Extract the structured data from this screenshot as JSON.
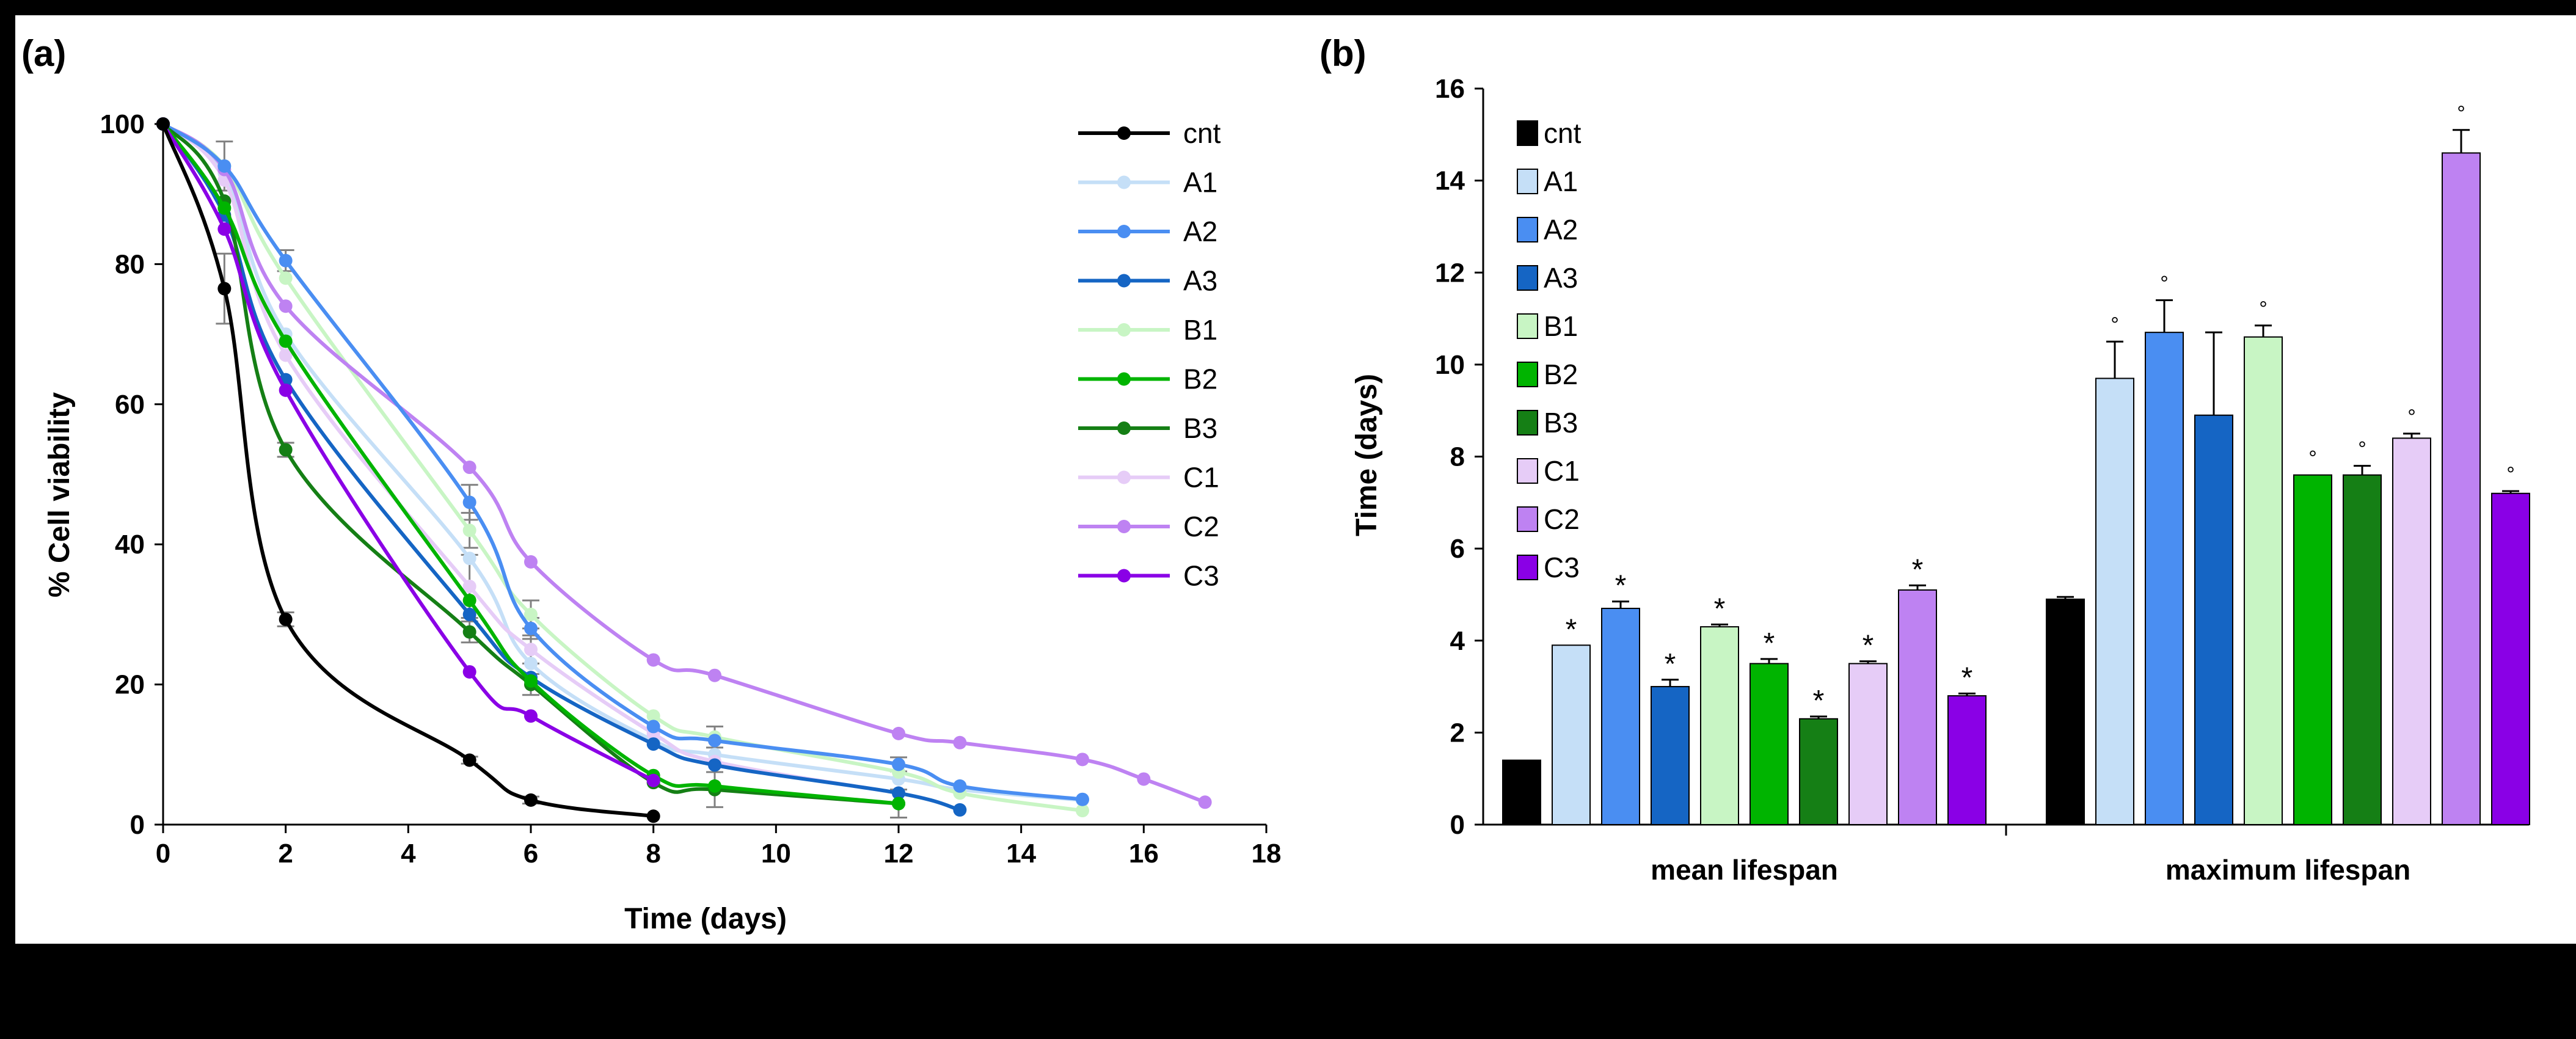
{
  "colors": {
    "cnt": "#000000",
    "A1": "#c5dff7",
    "A2": "#4a8ef2",
    "A3": "#1565c4",
    "B1": "#c8f5c4",
    "B2": "#00b400",
    "B3": "#157f15",
    "C1": "#e6ccf7",
    "C2": "#be82f2",
    "C3": "#8a00e6"
  },
  "chart_data": [
    {
      "panel_label": "(a)",
      "type": "line",
      "title": "",
      "xlabel": "Time (days)",
      "ylabel": "% Cell viability",
      "xlim": [
        0,
        18
      ],
      "ylim": [
        0,
        100
      ],
      "xticks": [
        "0",
        "2",
        "4",
        "6",
        "8",
        "10",
        "12",
        "14",
        "16",
        "18"
      ],
      "yticks": [
        "0",
        "20",
        "40",
        "60",
        "80",
        "100"
      ],
      "legend_position": "top-right",
      "series": [
        {
          "name": "cnt",
          "x": [
            0,
            1,
            2,
            5,
            6,
            8
          ],
          "y": [
            100,
            76.5,
            29.3,
            9.2,
            3.5,
            1.2
          ]
        },
        {
          "name": "A1",
          "x": [
            0,
            1,
            2,
            5,
            6,
            8,
            9,
            12,
            13,
            15
          ],
          "y": [
            100,
            93,
            70,
            38,
            23,
            12,
            10,
            6.5,
            5,
            3.5
          ]
        },
        {
          "name": "A2",
          "x": [
            0,
            1,
            2,
            5,
            6,
            8,
            9,
            12,
            13,
            15
          ],
          "y": [
            100,
            94,
            80.5,
            46,
            28,
            14,
            12,
            8.6,
            5.5,
            3.6
          ]
        },
        {
          "name": "A3",
          "x": [
            0,
            1,
            2,
            5,
            6,
            8,
            9,
            12,
            13
          ],
          "y": [
            100,
            87,
            63.5,
            30,
            21,
            11.5,
            8.5,
            4.5,
            2.1
          ]
        },
        {
          "name": "B1",
          "x": [
            0,
            1,
            2,
            5,
            6,
            8,
            9,
            12,
            13,
            15
          ],
          "y": [
            100,
            94,
            78,
            42,
            30,
            15.5,
            12.5,
            7.5,
            4.5,
            2
          ]
        },
        {
          "name": "B2",
          "x": [
            0,
            1,
            2,
            5,
            6,
            8,
            9,
            12
          ],
          "y": [
            100,
            88,
            69,
            32,
            20.5,
            7,
            5.5,
            3
          ]
        },
        {
          "name": "B3",
          "x": [
            0,
            1,
            2,
            5,
            6,
            8,
            9,
            12
          ],
          "y": [
            100,
            89,
            53.5,
            27.5,
            20,
            6,
            5,
            3
          ]
        },
        {
          "name": "C1",
          "x": [
            0,
            1,
            2,
            5,
            6,
            8,
            9,
            12
          ],
          "y": [
            100,
            92,
            67,
            34,
            25,
            13,
            9,
            4.5
          ]
        },
        {
          "name": "C2",
          "x": [
            0,
            1,
            2,
            5,
            6,
            8,
            9,
            12,
            13,
            15,
            16,
            17
          ],
          "y": [
            100,
            93.5,
            74,
            51,
            37.5,
            23.5,
            21.3,
            13,
            11.7,
            9.3,
            6.5,
            3.2
          ]
        },
        {
          "name": "C3",
          "x": [
            0,
            1,
            2,
            5,
            6,
            8
          ],
          "y": [
            100,
            85,
            62,
            21.8,
            15.5,
            6.3
          ]
        }
      ],
      "error_bars_y": [
        {
          "series": "cnt",
          "x": [
            1,
            2,
            5,
            6
          ],
          "err": [
            5,
            1,
            0.5,
            0.5
          ]
        },
        {
          "series": "A2",
          "x": [
            1,
            2,
            5,
            6,
            12
          ],
          "err": [
            3.5,
            1.5,
            2.5,
            1.5,
            1
          ]
        },
        {
          "series": "B1",
          "x": [
            5,
            6,
            9
          ],
          "err": [
            2.5,
            2,
            1.5
          ]
        },
        {
          "series": "B3",
          "x": [
            2,
            5,
            6,
            9,
            12
          ],
          "err": [
            1,
            1.5,
            1.5,
            2.5,
            2
          ]
        },
        {
          "series": "C1",
          "x": [
            5,
            6
          ],
          "err": [
            4.5,
            2
          ]
        }
      ]
    },
    {
      "panel_label": "(b)",
      "type": "bar",
      "title": "",
      "xlabel": "",
      "ylabel": "Time (days)",
      "ylim": [
        0,
        16
      ],
      "yticks": [
        "0",
        "2",
        "4",
        "6",
        "8",
        "10",
        "12",
        "14",
        "16"
      ],
      "categories": [
        "mean lifespan",
        "maximum lifespan"
      ],
      "legend_position": "top-left",
      "series": [
        {
          "name": "cnt",
          "values": [
            1.4,
            4.9
          ],
          "errors": [
            0,
            0.05
          ],
          "marks": [
            "",
            ""
          ]
        },
        {
          "name": "A1",
          "values": [
            3.9,
            9.7
          ],
          "errors": [
            0,
            0.8
          ],
          "marks": [
            "*",
            "°"
          ]
        },
        {
          "name": "A2",
          "values": [
            4.7,
            10.7
          ],
          "errors": [
            0.15,
            0.7
          ],
          "marks": [
            "*",
            "°"
          ]
        },
        {
          "name": "A3",
          "values": [
            3.0,
            8.9
          ],
          "errors": [
            0.15,
            1.8
          ],
          "marks": [
            "*",
            ""
          ]
        },
        {
          "name": "B1",
          "values": [
            4.3,
            10.6
          ],
          "errors": [
            0.05,
            0.25
          ],
          "marks": [
            "*",
            "°"
          ]
        },
        {
          "name": "B2",
          "values": [
            3.5,
            7.6
          ],
          "errors": [
            0.1,
            0
          ],
          "marks": [
            "*",
            "°"
          ]
        },
        {
          "name": "B3",
          "values": [
            2.3,
            7.6
          ],
          "errors": [
            0.05,
            0.2
          ],
          "marks": [
            "*",
            "°"
          ]
        },
        {
          "name": "C1",
          "values": [
            3.5,
            8.4
          ],
          "errors": [
            0.05,
            0.1
          ],
          "marks": [
            "*",
            "°"
          ]
        },
        {
          "name": "C2",
          "values": [
            5.1,
            14.6
          ],
          "errors": [
            0.1,
            0.5
          ],
          "marks": [
            "*",
            "°"
          ]
        },
        {
          "name": "C3",
          "values": [
            2.8,
            7.2
          ],
          "errors": [
            0.05,
            0.05
          ],
          "marks": [
            "*",
            "°"
          ]
        }
      ]
    }
  ]
}
